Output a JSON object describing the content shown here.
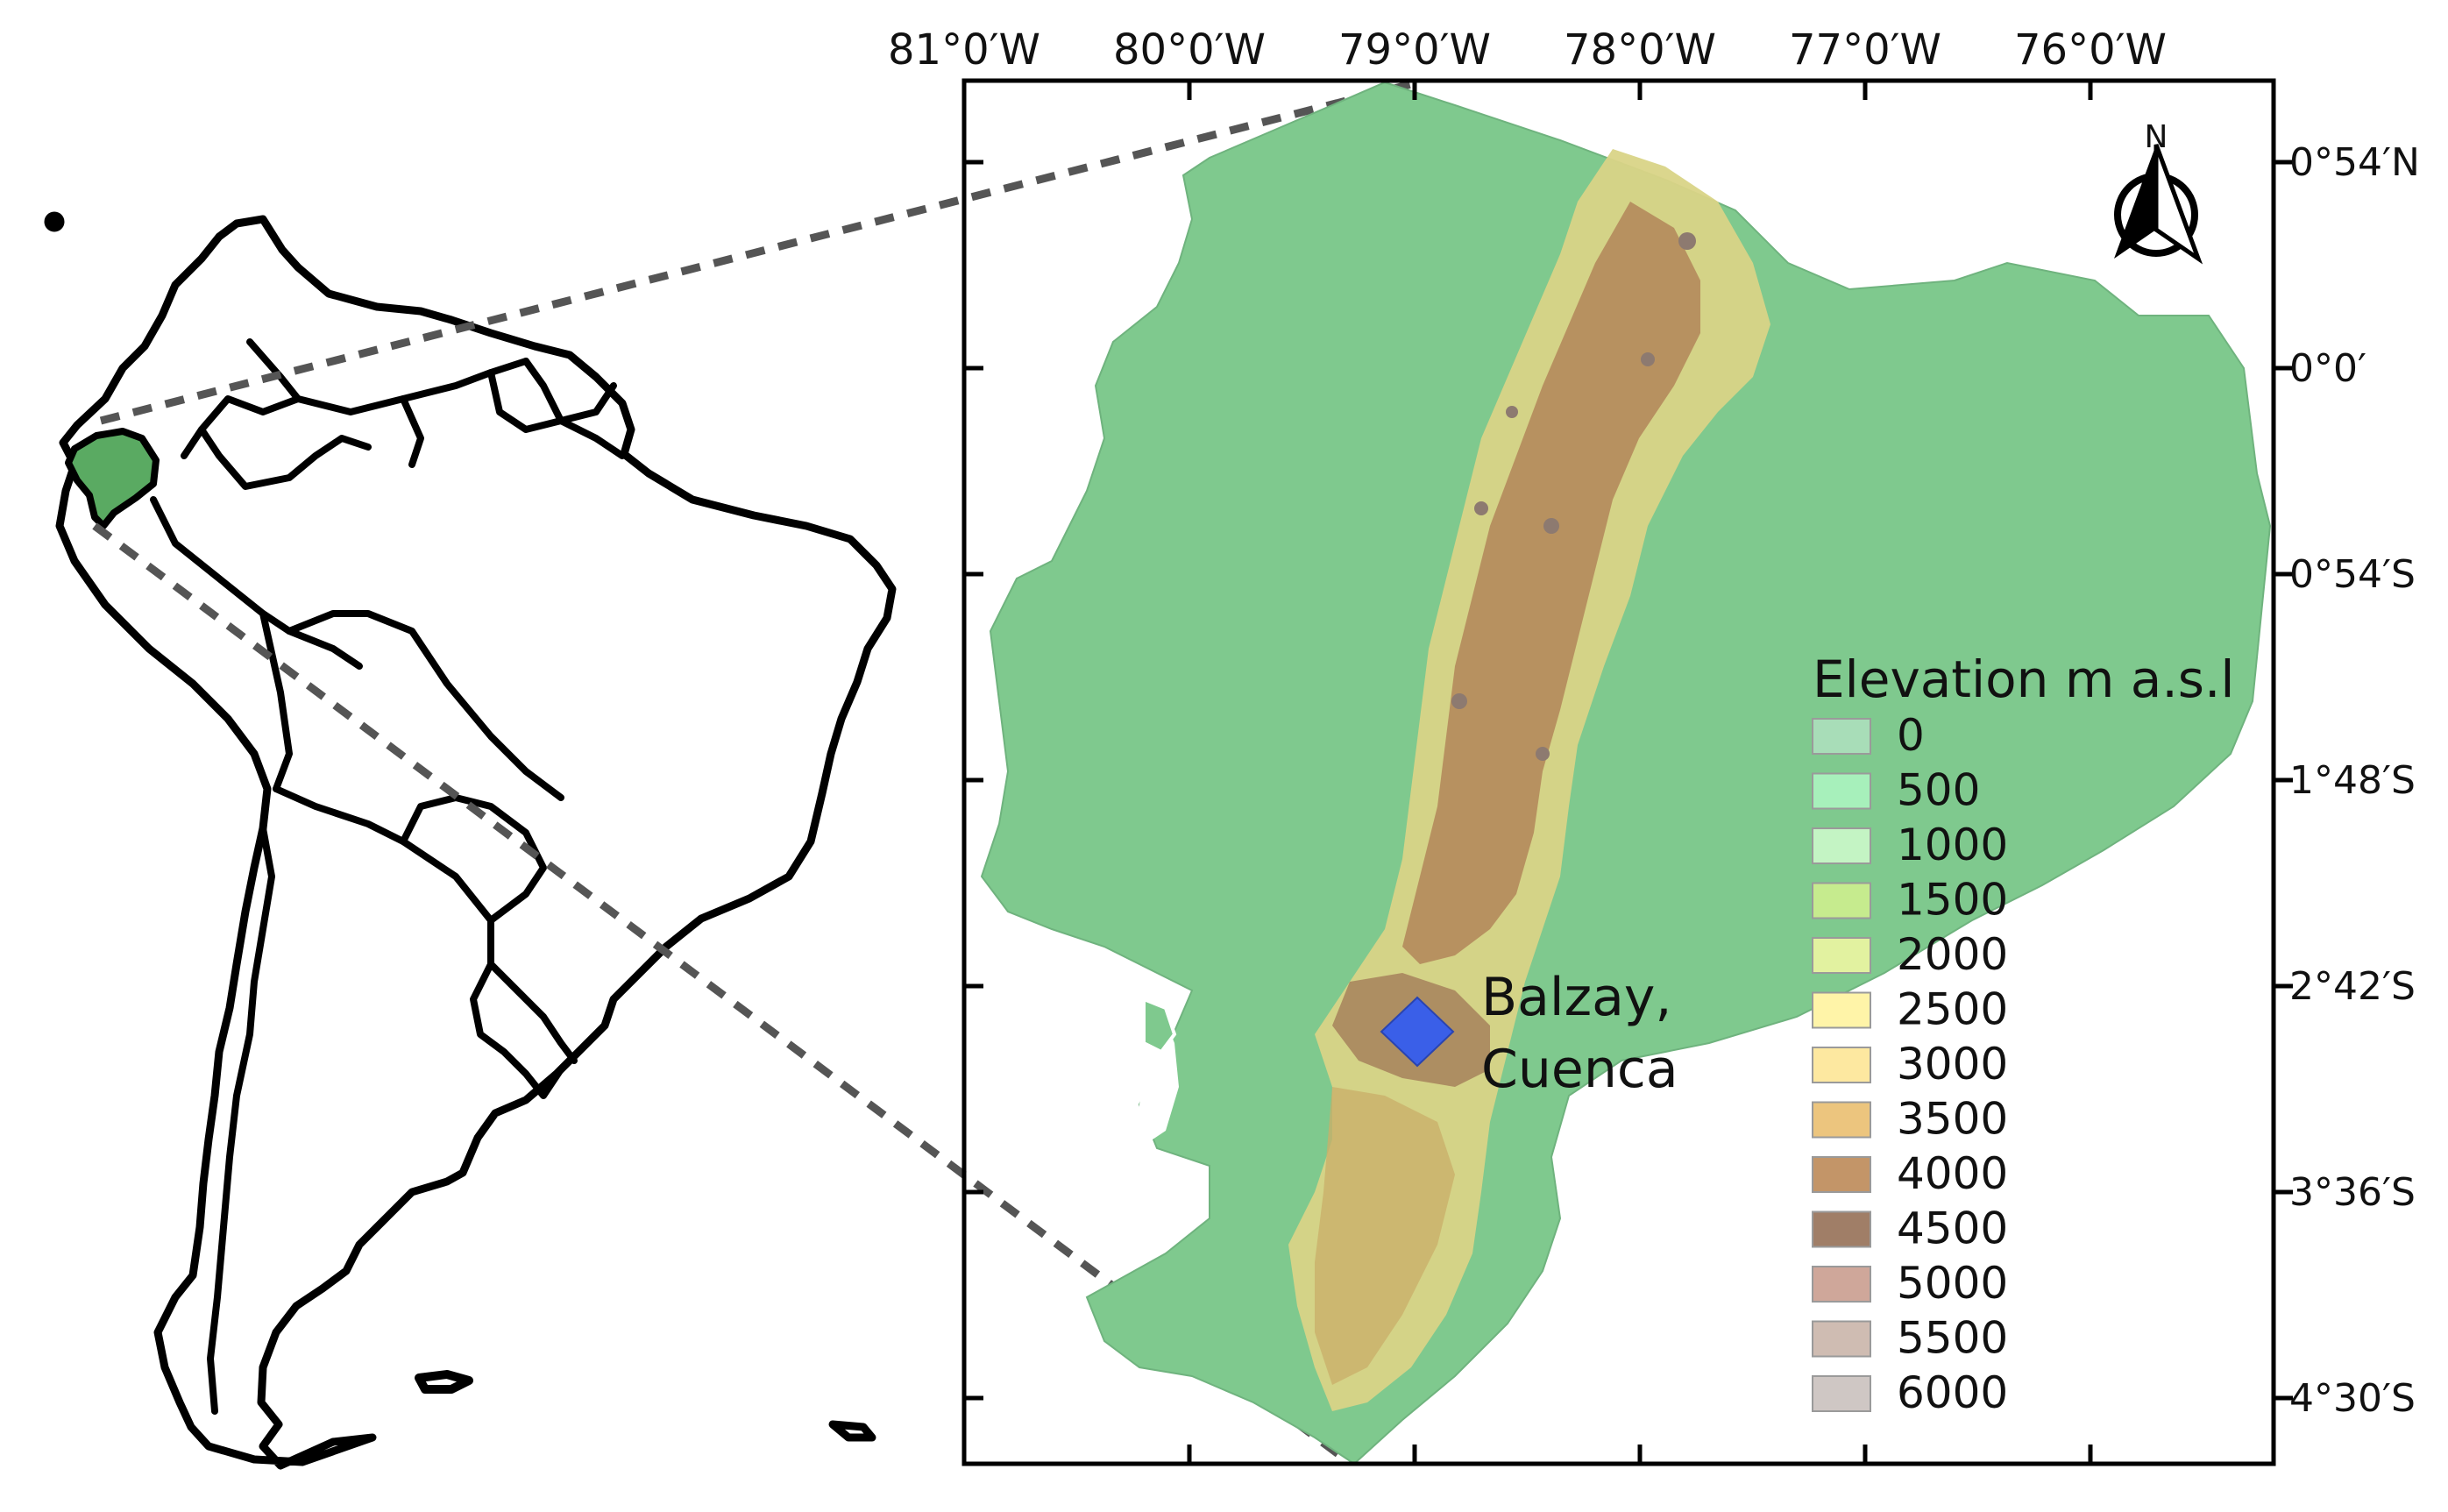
{
  "map": {
    "top_axis_labels": [
      "81°0′W",
      "80°0′W",
      "79°0′W",
      "78°0′W",
      "77°0′W",
      "76°0′W"
    ],
    "right_axis_labels": [
      "0°54′N",
      "0°0′",
      "0°54′S",
      "1°48′S",
      "2°42′S",
      "3°36′S",
      "4°30′S"
    ],
    "north_arrow": {
      "label": "N",
      "icon": "north-arrow-icon"
    },
    "site_marker": {
      "line1": "Balzay,",
      "line2": "Cuenca",
      "color": "#3a5fe8",
      "icon": "diamond-marker-icon"
    }
  },
  "legend": {
    "title": "Elevation m a.s.l",
    "items": [
      {
        "label": "0",
        "color": "#a8ddb8"
      },
      {
        "label": "500",
        "color": "#a7f0bb"
      },
      {
        "label": "1000",
        "color": "#c4f4c4"
      },
      {
        "label": "1500",
        "color": "#c6eb8e"
      },
      {
        "label": "2000",
        "color": "#e2f2a0"
      },
      {
        "label": "2500",
        "color": "#fff4a8"
      },
      {
        "label": "3000",
        "color": "#fde8a0"
      },
      {
        "label": "3500",
        "color": "#ecc57e"
      },
      {
        "label": "4000",
        "color": "#c39568"
      },
      {
        "label": "4500",
        "color": "#a07e67"
      },
      {
        "label": "5000",
        "color": "#cfa79a"
      },
      {
        "label": "5500",
        "color": "#cfbcb2"
      },
      {
        "label": "6000",
        "color": "#cfc7c4"
      }
    ]
  },
  "inset": {
    "highlight_color": "#5aaa62",
    "highlighted_country": "Ecuador"
  }
}
